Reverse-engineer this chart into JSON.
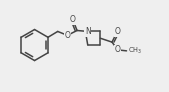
{
  "bg_color": "#efefef",
  "line_color": "#444444",
  "lw": 1.1,
  "fig_width": 1.69,
  "fig_height": 0.92,
  "dpi": 100,
  "xlim": [
    0,
    169
  ],
  "ylim": [
    0,
    92
  ]
}
